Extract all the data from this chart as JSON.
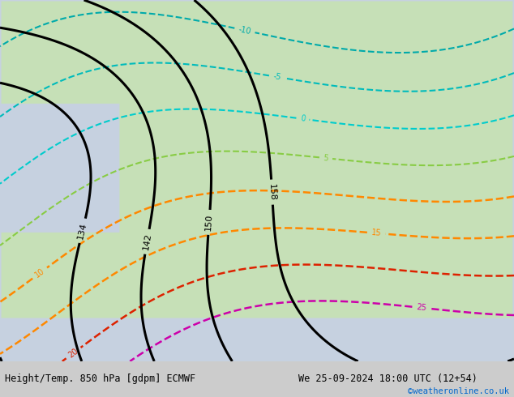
{
  "title_left": "Height/Temp. 850 hPa [gdpm] ECMWF",
  "title_right": "We 25-09-2024 18:00 UTC (12+54)",
  "credit": "©weatheronline.co.uk",
  "bg_color": "#e8e8e8",
  "map_extent": [
    -25,
    40,
    30,
    72
  ],
  "bottom_bar_color": "#d0d0d0",
  "label_color_left": "#000000",
  "label_color_right": "#000000",
  "credit_color": "#0066cc"
}
